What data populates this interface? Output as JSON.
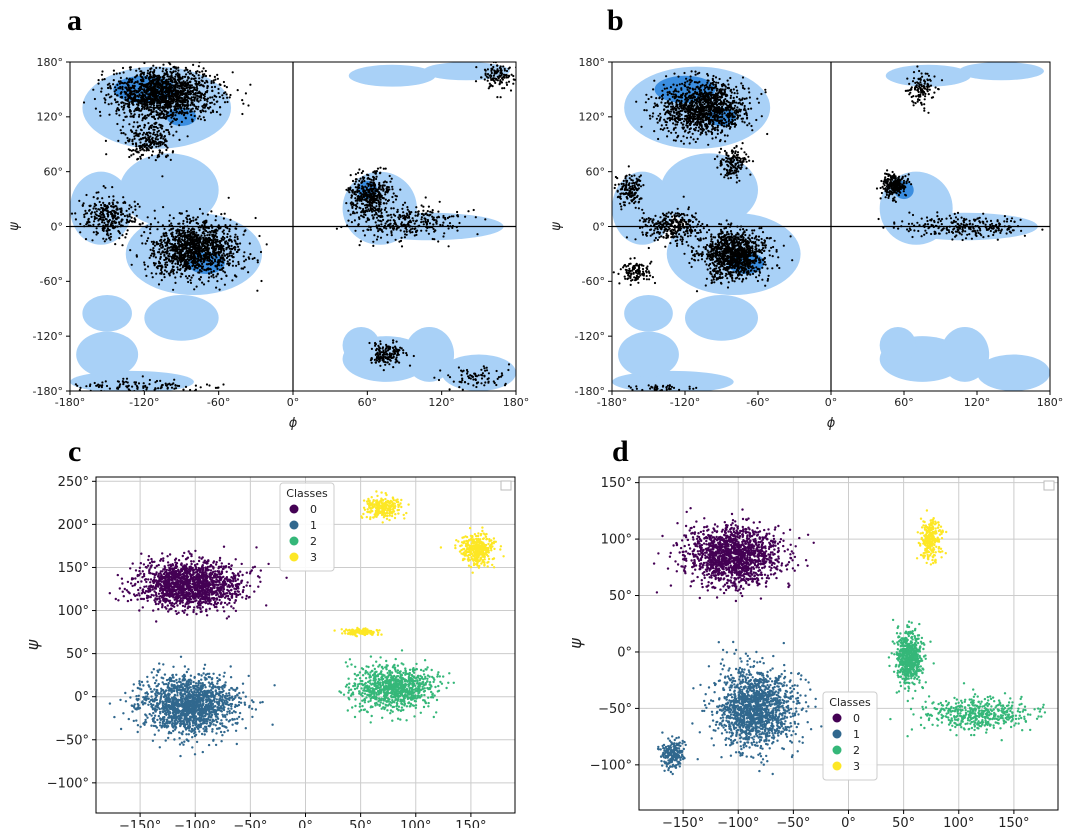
{
  "colors": {
    "allowed_region": "#a9d1f7",
    "favored_region": "#3b8ee0",
    "points": "#000000",
    "class0": "#440154",
    "class1": "#31688e",
    "class2": "#35b779",
    "class3": "#fde725",
    "grid": "#cccccc"
  },
  "chart_data": [
    {
      "id": "a",
      "type": "scatter",
      "panel_label": "a",
      "xlabel": "ϕ",
      "ylabel": "ψ",
      "xlim": [
        -180,
        180
      ],
      "ylim": [
        -180,
        180
      ],
      "x_ticks": [
        -180,
        -120,
        -60,
        0,
        60,
        120,
        180
      ],
      "y_ticks": [
        -180,
        -120,
        -60,
        0,
        60,
        120,
        180
      ],
      "x_tick_labels": [
        "-180°",
        "-120°",
        "-60°",
        "0°",
        "60°",
        "120°",
        "180°"
      ],
      "y_tick_labels": [
        "-180°",
        "-120°",
        "-60°",
        "0°",
        "60°",
        "120°",
        "180°"
      ],
      "background": "ramachandran_allowed_regions",
      "clusters": [
        {
          "center": [
            -105,
            145
          ],
          "spread": [
            35,
            22
          ],
          "n": 1500
        },
        {
          "center": [
            -115,
            95
          ],
          "spread": [
            18,
            18
          ],
          "n": 250
        },
        {
          "center": [
            -80,
            -25
          ],
          "spread": [
            30,
            25
          ],
          "n": 1300
        },
        {
          "center": [
            -150,
            10
          ],
          "spread": [
            20,
            20
          ],
          "n": 300
        },
        {
          "center": [
            62,
            35
          ],
          "spread": [
            14,
            20
          ],
          "n": 400
        },
        {
          "center": [
            95,
            5
          ],
          "spread": [
            40,
            16
          ],
          "n": 300
        },
        {
          "center": [
            75,
            -140
          ],
          "spread": [
            12,
            12
          ],
          "n": 160
        },
        {
          "center": [
            150,
            -165
          ],
          "spread": [
            20,
            10
          ],
          "n": 80
        },
        {
          "center": [
            -120,
            -175
          ],
          "spread": [
            45,
            6
          ],
          "n": 120
        },
        {
          "center": [
            165,
            165
          ],
          "spread": [
            12,
            12
          ],
          "n": 120
        }
      ]
    },
    {
      "id": "b",
      "type": "scatter",
      "panel_label": "b",
      "xlabel": "ϕ",
      "ylabel": "ψ",
      "xlim": [
        -180,
        180
      ],
      "ylim": [
        -180,
        180
      ],
      "x_ticks": [
        -180,
        -120,
        -60,
        0,
        60,
        120,
        180
      ],
      "y_ticks": [
        -180,
        -120,
        -60,
        0,
        60,
        120,
        180
      ],
      "x_tick_labels": [
        "-180°",
        "-120°",
        "-60°",
        "0°",
        "60°",
        "120°",
        "180°"
      ],
      "y_tick_labels": [
        "-180°",
        "-120°",
        "-60°",
        "0°",
        "60°",
        "120°",
        "180°"
      ],
      "background": "ramachandran_allowed_regions",
      "clusters": [
        {
          "center": [
            -105,
            130
          ],
          "spread": [
            30,
            25
          ],
          "n": 1200
        },
        {
          "center": [
            -80,
            70
          ],
          "spread": [
            10,
            15
          ],
          "n": 150
        },
        {
          "center": [
            -80,
            -30
          ],
          "spread": [
            22,
            22
          ],
          "n": 1100
        },
        {
          "center": [
            -130,
            0
          ],
          "spread": [
            20,
            15
          ],
          "n": 300
        },
        {
          "center": [
            -165,
            40
          ],
          "spread": [
            10,
            15
          ],
          "n": 150
        },
        {
          "center": [
            -160,
            -50
          ],
          "spread": [
            10,
            10
          ],
          "n": 120
        },
        {
          "center": [
            52,
            45
          ],
          "spread": [
            8,
            10
          ],
          "n": 250
        },
        {
          "center": [
            110,
            0
          ],
          "spread": [
            45,
            10
          ],
          "n": 250
        },
        {
          "center": [
            75,
            150
          ],
          "spread": [
            10,
            15
          ],
          "n": 120
        },
        {
          "center": [
            -140,
            -177
          ],
          "spread": [
            20,
            3
          ],
          "n": 40
        }
      ]
    },
    {
      "id": "c",
      "type": "scatter",
      "panel_label": "c",
      "xlabel": "ϕ",
      "ylabel": "ψ",
      "xlim": [
        -190,
        190
      ],
      "ylim": [
        -135,
        255
      ],
      "x_ticks": [
        -150,
        -100,
        -50,
        0,
        50,
        100,
        150
      ],
      "y_ticks": [
        -100,
        -50,
        0,
        50,
        100,
        150,
        200,
        250
      ],
      "x_tick_labels": [
        "−150°",
        "−100°",
        "−50°",
        "0°",
        "50°",
        "100°",
        "150°"
      ],
      "y_tick_labels": [
        "−100°",
        "−50°",
        "0°",
        "50°",
        "100°",
        "150°",
        "200°",
        "250°"
      ],
      "grid": true,
      "legend": {
        "title": "Classes",
        "labels": [
          "0",
          "1",
          "2",
          "3"
        ],
        "placement": "top-center"
      },
      "clusters": [
        {
          "class": 0,
          "center": [
            -105,
            130
          ],
          "spread": [
            38,
            22
          ],
          "n": 1600
        },
        {
          "class": 1,
          "center": [
            -105,
            -10
          ],
          "spread": [
            35,
            28
          ],
          "n": 1600
        },
        {
          "class": 2,
          "center": [
            80,
            10
          ],
          "spread": [
            30,
            20
          ],
          "n": 900
        },
        {
          "class": 3,
          "center": [
            70,
            220
          ],
          "spread": [
            15,
            10
          ],
          "n": 250
        },
        {
          "class": 3,
          "center": [
            155,
            170
          ],
          "spread": [
            13,
            15
          ],
          "n": 350
        },
        {
          "class": 3,
          "center": [
            50,
            75
          ],
          "spread": [
            12,
            3
          ],
          "n": 120
        }
      ]
    },
    {
      "id": "d",
      "type": "scatter",
      "panel_label": "d",
      "xlabel": "ϕ",
      "ylabel": "ψ",
      "xlim": [
        -190,
        190
      ],
      "ylim": [
        -140,
        155
      ],
      "x_ticks": [
        -150,
        -100,
        -50,
        0,
        50,
        100,
        150
      ],
      "y_ticks": [
        -100,
        -50,
        0,
        50,
        100,
        150
      ],
      "x_tick_labels": [
        "−150°",
        "−100°",
        "−50°",
        "0°",
        "50°",
        "100°",
        "150°"
      ],
      "y_tick_labels": [
        "−100°",
        "−50°",
        "0°",
        "50°",
        "100°",
        "150°"
      ],
      "grid": true,
      "legend": {
        "title": "Classes",
        "labels": [
          "0",
          "1",
          "2",
          "3"
        ],
        "placement": "bottom-center"
      },
      "clusters": [
        {
          "class": 0,
          "center": [
            -105,
            85
          ],
          "spread": [
            35,
            22
          ],
          "n": 1500
        },
        {
          "class": 1,
          "center": [
            -85,
            -50
          ],
          "spread": [
            30,
            28
          ],
          "n": 1500
        },
        {
          "class": 1,
          "center": [
            -160,
            -90
          ],
          "spread": [
            10,
            12
          ],
          "n": 200
        },
        {
          "class": 2,
          "center": [
            55,
            -5
          ],
          "spread": [
            10,
            20
          ],
          "n": 600
        },
        {
          "class": 2,
          "center": [
            120,
            -55
          ],
          "spread": [
            40,
            12
          ],
          "n": 450
        },
        {
          "class": 3,
          "center": [
            75,
            100
          ],
          "spread": [
            8,
            15
          ],
          "n": 250
        }
      ]
    }
  ]
}
